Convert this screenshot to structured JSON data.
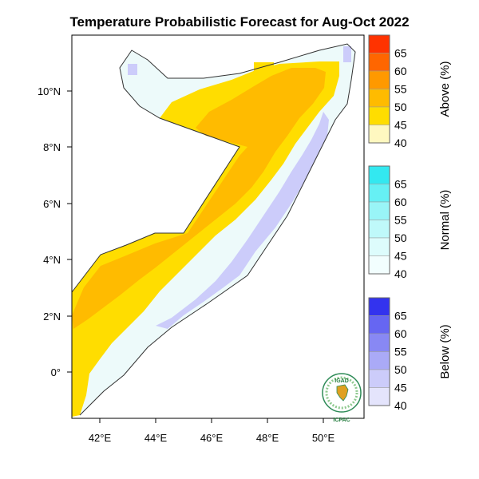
{
  "title": "Temperature Probabilistic Forecast for Aug-Oct 2022",
  "lon_ticks": [
    "42°E",
    "44°E",
    "46°E",
    "48°E",
    "50°E"
  ],
  "lat_ticks": [
    "0°",
    "2°N",
    "4°N",
    "6°N",
    "8°N",
    "10°N"
  ],
  "colorbars": [
    {
      "title": "Above (%)",
      "labels": [
        "65",
        "60",
        "55",
        "50",
        "45",
        "40"
      ],
      "colors": [
        "#ff3300",
        "#ff6600",
        "#ff9900",
        "#ffbb00",
        "#ffdd00",
        "#fff8c0"
      ]
    },
    {
      "title": "Normal (%)",
      "labels": [
        "65",
        "60",
        "55",
        "50",
        "45",
        "40"
      ],
      "colors": [
        "#33e8f0",
        "#66f0f4",
        "#99f5f7",
        "#bff9fa",
        "#ddfcfc",
        "#f2fefe"
      ]
    },
    {
      "title": "Below (%)",
      "labels": [
        "65",
        "60",
        "55",
        "50",
        "45",
        "40"
      ],
      "colors": [
        "#3333ee",
        "#6666f2",
        "#8888f4",
        "#aaaaf7",
        "#ccccfa",
        "#e4e4fc"
      ]
    }
  ],
  "logo": {
    "top": "IGAD",
    "bottom": "ICPAC"
  },
  "colors": {
    "above_45": "#ffdd00",
    "above_50": "#ffbb00",
    "normal_40": "#edfafa",
    "below_40": "#ccccfa",
    "outline": "#333333"
  }
}
